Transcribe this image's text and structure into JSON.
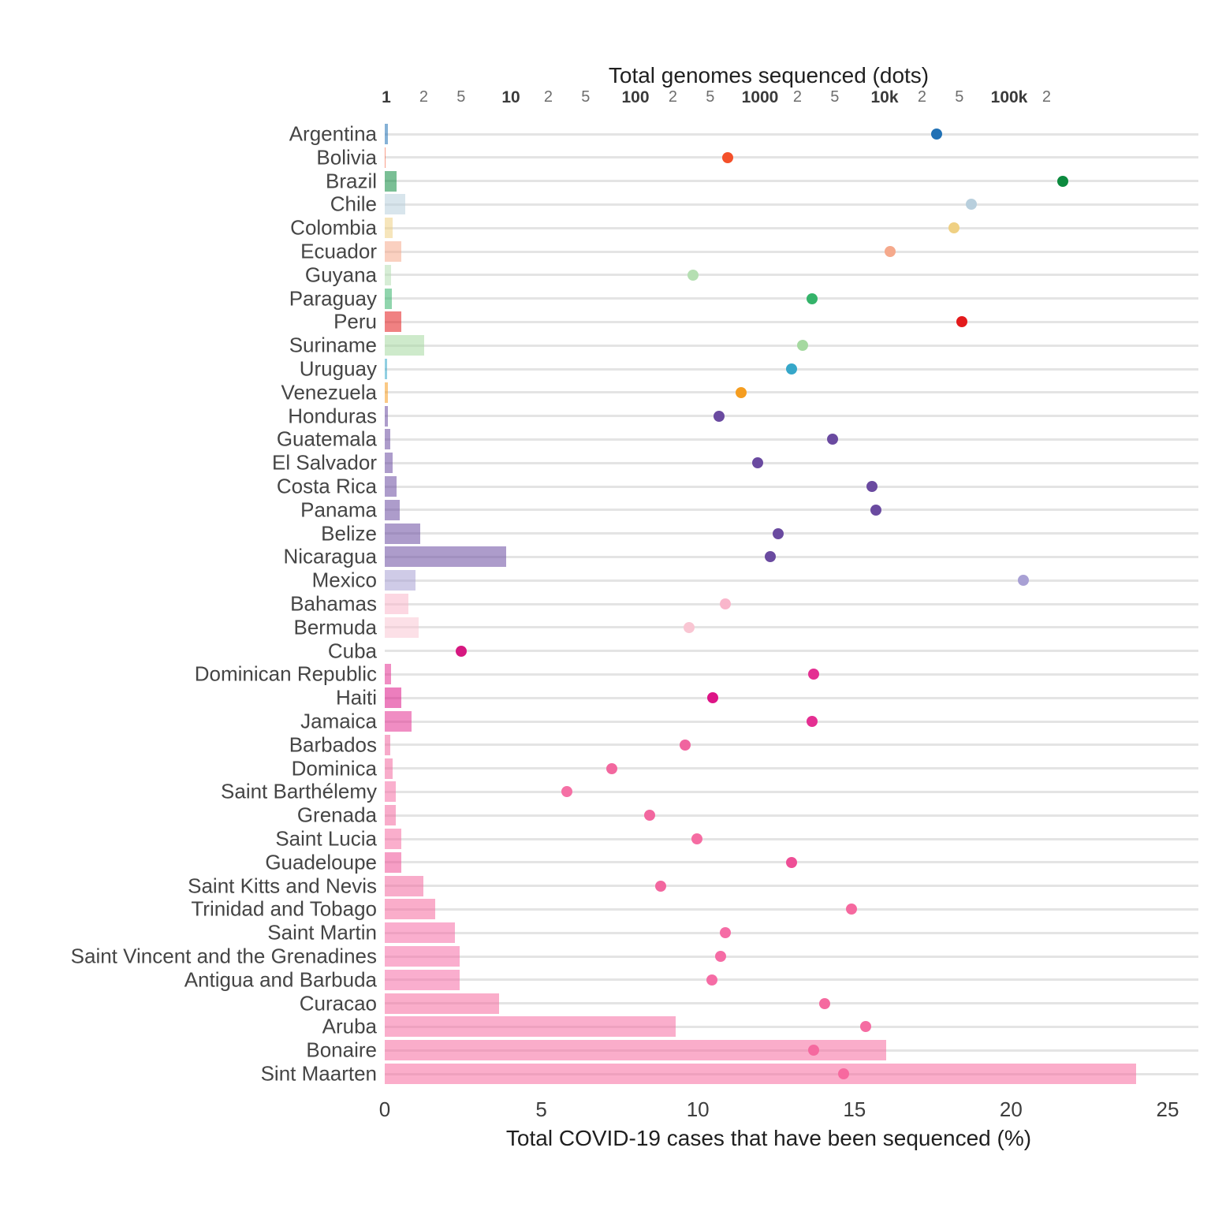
{
  "chart_data": {
    "type": "bar",
    "subtype": "horizontal-bars-with-log-dots",
    "title": "Total genomes sequenced (dots)",
    "xlabel": "Total COVID-19 cases that have been sequenced (%)",
    "legend_position": "none",
    "grid": "horizontal-only",
    "top_axis": {
      "title": "Total genomes sequenced (dots)",
      "scale": "log10",
      "ticks": [
        {
          "label": "1",
          "decades": 0.0,
          "major": true
        },
        {
          "label": "2",
          "decades": 0.3,
          "major": false
        },
        {
          "label": "5",
          "decades": 0.6,
          "major": false
        },
        {
          "label": "10",
          "decades": 1.0,
          "major": true
        },
        {
          "label": "2",
          "decades": 1.3,
          "major": false
        },
        {
          "label": "5",
          "decades": 1.6,
          "major": false
        },
        {
          "label": "100",
          "decades": 2.0,
          "major": true
        },
        {
          "label": "2",
          "decades": 2.3,
          "major": false
        },
        {
          "label": "5",
          "decades": 2.6,
          "major": false
        },
        {
          "label": "1000",
          "decades": 3.0,
          "major": true
        },
        {
          "label": "2",
          "decades": 3.3,
          "major": false
        },
        {
          "label": "5",
          "decades": 3.6,
          "major": false
        },
        {
          "label": "10k",
          "decades": 4.0,
          "major": true
        },
        {
          "label": "2",
          "decades": 4.3,
          "major": false
        },
        {
          "label": "5",
          "decades": 4.6,
          "major": false
        },
        {
          "label": "100k",
          "decades": 5.0,
          "major": true
        },
        {
          "label": "2",
          "decades": 5.3,
          "major": false
        }
      ]
    },
    "bottom_axis": {
      "title": "Total COVID-19 cases that have been sequenced (%)",
      "ticks": [
        "0",
        "5",
        "10",
        "15",
        "20",
        "25"
      ],
      "range": [
        0,
        25
      ]
    },
    "countries": [
      {
        "name": "Argentina",
        "percent_sequenced": 0.1,
        "genomes_sequenced": 26000,
        "color": "#2171b5"
      },
      {
        "name": "Bolivia",
        "percent_sequenced": 0.02,
        "genomes_sequenced": 550,
        "color": "#f4502a"
      },
      {
        "name": "Brazil",
        "percent_sequenced": 0.37,
        "genomes_sequenced": 270000,
        "color": "#0c8a3e"
      },
      {
        "name": "Chile",
        "percent_sequenced": 0.66,
        "genomes_sequenced": 50000,
        "color": "#b8cfdd"
      },
      {
        "name": "Colombia",
        "percent_sequenced": 0.26,
        "genomes_sequenced": 36000,
        "color": "#efd083"
      },
      {
        "name": "Ecuador",
        "percent_sequenced": 0.54,
        "genomes_sequenced": 11000,
        "color": "#f5a98c"
      },
      {
        "name": "Guyana",
        "percent_sequenced": 0.2,
        "genomes_sequenced": 290,
        "color": "#b5dfb2"
      },
      {
        "name": "Paraguay",
        "percent_sequenced": 0.22,
        "genomes_sequenced": 2600,
        "color": "#34b36a"
      },
      {
        "name": "Peru",
        "percent_sequenced": 0.54,
        "genomes_sequenced": 42000,
        "color": "#e31a1c"
      },
      {
        "name": "Suriname",
        "percent_sequenced": 1.25,
        "genomes_sequenced": 2200,
        "color": "#a5d9a0"
      },
      {
        "name": "Uruguay",
        "percent_sequenced": 0.07,
        "genomes_sequenced": 1800,
        "color": "#36a7c9"
      },
      {
        "name": "Venezuela",
        "percent_sequenced": 0.1,
        "genomes_sequenced": 700,
        "color": "#f59d20"
      },
      {
        "name": "Honduras",
        "percent_sequenced": 0.09,
        "genomes_sequenced": 470,
        "color": "#6a4aa0"
      },
      {
        "name": "Guatemala",
        "percent_sequenced": 0.18,
        "genomes_sequenced": 3800,
        "color": "#6a4aa0"
      },
      {
        "name": "El Salvador",
        "percent_sequenced": 0.26,
        "genomes_sequenced": 960,
        "color": "#6a4aa0"
      },
      {
        "name": "Costa Rica",
        "percent_sequenced": 0.37,
        "genomes_sequenced": 7900,
        "color": "#6a4aa0"
      },
      {
        "name": "Panama",
        "percent_sequenced": 0.47,
        "genomes_sequenced": 8500,
        "color": "#6a4aa0"
      },
      {
        "name": "Belize",
        "percent_sequenced": 1.14,
        "genomes_sequenced": 1400,
        "color": "#6a4aa0"
      },
      {
        "name": "Nicaragua",
        "percent_sequenced": 3.88,
        "genomes_sequenced": 1200,
        "color": "#6a4aa0"
      },
      {
        "name": "Mexico",
        "percent_sequenced": 0.97,
        "genomes_sequenced": 130000,
        "color": "#a8a0d4"
      },
      {
        "name": "Bahamas",
        "percent_sequenced": 0.76,
        "genomes_sequenced": 530,
        "color": "#f9b6cb"
      },
      {
        "name": "Bermuda",
        "percent_sequenced": 1.07,
        "genomes_sequenced": 270,
        "color": "#f9c6d3"
      },
      {
        "name": "Cuba",
        "percent_sequenced": 0.0,
        "genomes_sequenced": 4,
        "color": "#d61880"
      },
      {
        "name": "Dominican Republic",
        "percent_sequenced": 0.19,
        "genomes_sequenced": 2700,
        "color": "#e42f92"
      },
      {
        "name": "Haiti",
        "percent_sequenced": 0.54,
        "genomes_sequenced": 420,
        "color": "#dd1486"
      },
      {
        "name": "Jamaica",
        "percent_sequenced": 0.85,
        "genomes_sequenced": 2600,
        "color": "#e42f92"
      },
      {
        "name": "Barbados",
        "percent_sequenced": 0.17,
        "genomes_sequenced": 250,
        "color": "#f0649f"
      },
      {
        "name": "Dominica",
        "percent_sequenced": 0.26,
        "genomes_sequenced": 65,
        "color": "#f2689f"
      },
      {
        "name": "Saint Barthélemy",
        "percent_sequenced": 0.35,
        "genomes_sequenced": 28,
        "color": "#f570a5"
      },
      {
        "name": "Grenada",
        "percent_sequenced": 0.35,
        "genomes_sequenced": 130,
        "color": "#f2679f"
      },
      {
        "name": "Saint Lucia",
        "percent_sequenced": 0.54,
        "genomes_sequenced": 310,
        "color": "#f56ca2"
      },
      {
        "name": "Guadeloupe",
        "percent_sequenced": 0.54,
        "genomes_sequenced": 1800,
        "color": "#ee4f96"
      },
      {
        "name": "Saint Kitts and Nevis",
        "percent_sequenced": 1.23,
        "genomes_sequenced": 160,
        "color": "#f2679f"
      },
      {
        "name": "Trinidad and Tobago",
        "percent_sequenced": 1.6,
        "genomes_sequenced": 5400,
        "color": "#f5699f"
      },
      {
        "name": "Saint Martin",
        "percent_sequenced": 2.25,
        "genomes_sequenced": 530,
        "color": "#f56ca5"
      },
      {
        "name": "Saint Vincent and the Grenadines",
        "percent_sequenced": 2.38,
        "genomes_sequenced": 480,
        "color": "#f56ca5"
      },
      {
        "name": "Antigua and Barbuda",
        "percent_sequenced": 2.38,
        "genomes_sequenced": 410,
        "color": "#f56ca5"
      },
      {
        "name": "Curacao",
        "percent_sequenced": 3.65,
        "genomes_sequenced": 3300,
        "color": "#f5699f"
      },
      {
        "name": "Aruba",
        "percent_sequenced": 9.3,
        "genomes_sequenced": 7000,
        "color": "#f56ca2"
      },
      {
        "name": "Bonaire",
        "percent_sequenced": 16.0,
        "genomes_sequenced": 2700,
        "color": "#f5699f"
      },
      {
        "name": "Sint Maarten",
        "percent_sequenced": 24.0,
        "genomes_sequenced": 4700,
        "color": "#f7699f"
      }
    ]
  }
}
